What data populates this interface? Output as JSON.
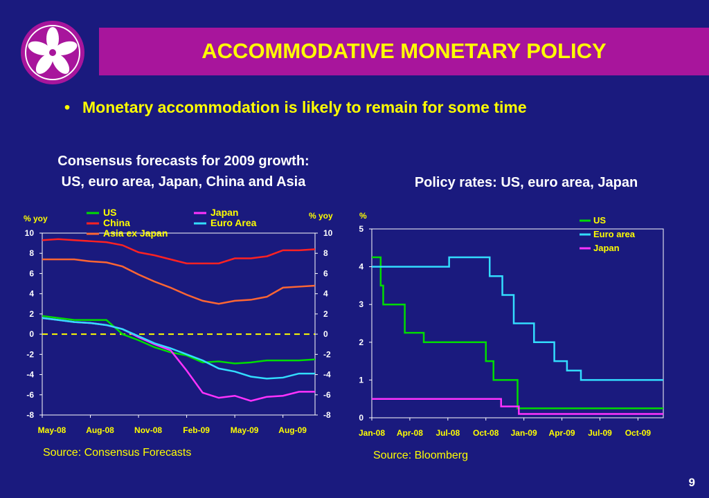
{
  "slide": {
    "title": "ACCOMMODATIVE MONETARY POLICY",
    "bullet": "Monetary accommodation is likely to remain for some time",
    "page_number": "9",
    "colors": {
      "background": "#1a1a7e",
      "title_bar": "#a8159c",
      "title_text": "#ffff00",
      "accent": "#ffff00"
    },
    "logo_icon": "bauhinia-flower-icon"
  },
  "chart_data": [
    {
      "type": "line",
      "title": "Consensus forecasts for 2009 growth:\nUS, euro area, Japan, China and Asia",
      "title_line1": "Consensus forecasts for 2009 growth:",
      "title_line2": "US, euro area, Japan, China and Asia",
      "ylabel_left": "% yoy",
      "ylabel_right": "% yoy",
      "ylim": [
        -8,
        10
      ],
      "yticks": [
        "10",
        "8",
        "6",
        "4",
        "2",
        "0",
        "-2",
        "-4",
        "-6",
        "-8"
      ],
      "x_tick_labels": [
        "May-08",
        "Aug-08",
        "Nov-08",
        "Feb-09",
        "May-09",
        "Aug-09"
      ],
      "x_tick_months": [
        0,
        3,
        6,
        9,
        12,
        15
      ],
      "source": "Source: Consensus Forecasts",
      "zero_line": {
        "y": 0,
        "style": "dashed",
        "color": "#ffff00"
      },
      "legend_placement": "top",
      "series": [
        {
          "name": "US",
          "color": "#00dd00",
          "x": [
            0,
            1,
            2,
            3,
            4,
            5,
            6,
            7,
            8,
            9,
            10,
            11,
            12,
            13,
            14,
            15,
            16,
            17
          ],
          "values": [
            1.8,
            1.6,
            1.4,
            1.4,
            1.4,
            0,
            -0.6,
            -1.3,
            -1.8,
            -2.1,
            -2.8,
            -2.7,
            -2.9,
            -2.8,
            -2.6,
            -2.6,
            -2.6,
            -2.5
          ]
        },
        {
          "name": "Japan",
          "color": "#ff33ff",
          "x": [
            0,
            1,
            2,
            3,
            4,
            5,
            6,
            7,
            8,
            9,
            10,
            11,
            12,
            13,
            14,
            15,
            16,
            17
          ],
          "values": [
            1.6,
            1.4,
            1.2,
            1.1,
            0.9,
            0.5,
            -0.3,
            -1.0,
            -1.6,
            -3.6,
            -5.8,
            -6.3,
            -6.1,
            -6.6,
            -6.2,
            -6.1,
            -5.7,
            -5.7
          ]
        },
        {
          "name": "China",
          "color": "#ff2222",
          "x": [
            0,
            1,
            2,
            3,
            4,
            5,
            6,
            7,
            8,
            9,
            10,
            11,
            12,
            13,
            14,
            15,
            16,
            17
          ],
          "values": [
            9.3,
            9.4,
            9.3,
            9.2,
            9.1,
            8.8,
            8.1,
            7.8,
            7.4,
            7.0,
            7.0,
            7.0,
            7.5,
            7.5,
            7.7,
            8.3,
            8.3,
            8.4
          ]
        },
        {
          "name": "Euro Area",
          "color": "#33ddff",
          "x": [
            0,
            1,
            2,
            3,
            4,
            5,
            6,
            7,
            8,
            9,
            10,
            11,
            12,
            13,
            14,
            15,
            16,
            17
          ],
          "values": [
            1.6,
            1.4,
            1.2,
            1.1,
            0.9,
            0.5,
            -0.2,
            -0.9,
            -1.4,
            -2.0,
            -2.6,
            -3.4,
            -3.7,
            -4.2,
            -4.4,
            -4.3,
            -3.9,
            -3.9
          ]
        },
        {
          "name": "Asia ex Japan",
          "color": "#ff6633",
          "x": [
            0,
            1,
            2,
            3,
            4,
            5,
            6,
            7,
            8,
            9,
            10,
            11,
            12,
            13,
            14,
            15,
            16,
            17
          ],
          "values": [
            7.4,
            7.4,
            7.4,
            7.2,
            7.1,
            6.7,
            5.9,
            5.2,
            4.6,
            3.9,
            3.3,
            3.0,
            3.3,
            3.4,
            3.7,
            4.6,
            4.7,
            4.8
          ]
        }
      ]
    },
    {
      "type": "line",
      "step": true,
      "title": "Policy rates: US, euro area, Japan",
      "ylabel": "%",
      "ylim": [
        0,
        5
      ],
      "yticks": [
        "5",
        "4",
        "3",
        "2",
        "1",
        "0"
      ],
      "x_tick_labels": [
        "Jan-08",
        "Apr-08",
        "Jul-08",
        "Oct-08",
        "Jan-09",
        "Apr-09",
        "Jul-09",
        "Oct-09"
      ],
      "x_tick_months": [
        0,
        3,
        6,
        9,
        12,
        15,
        18,
        21
      ],
      "source": "Source: Bloomberg",
      "legend_placement": "top-right",
      "series": [
        {
          "name": "US",
          "color": "#00dd00",
          "x": [
            0,
            0.7,
            0.9,
            1.0,
            2.6,
            4.1,
            9.0,
            9.6,
            11.5,
            23
          ],
          "values": [
            4.25,
            3.5,
            3.0,
            3.0,
            2.25,
            2.0,
            1.5,
            1.0,
            0.25,
            0.25
          ]
        },
        {
          "name": "Euro area",
          "color": "#33ddff",
          "x": [
            0,
            6.1,
            9.3,
            10.3,
            11.2,
            12.8,
            14.4,
            15.4,
            16.5,
            23
          ],
          "values": [
            4.0,
            4.25,
            3.75,
            3.25,
            2.5,
            2.0,
            1.5,
            1.25,
            1.0,
            1.0
          ]
        },
        {
          "name": "Japan",
          "color": "#ff33ff",
          "x": [
            0,
            10.2,
            11.6,
            23
          ],
          "values": [
            0.5,
            0.3,
            0.1,
            0.1
          ]
        }
      ]
    }
  ]
}
